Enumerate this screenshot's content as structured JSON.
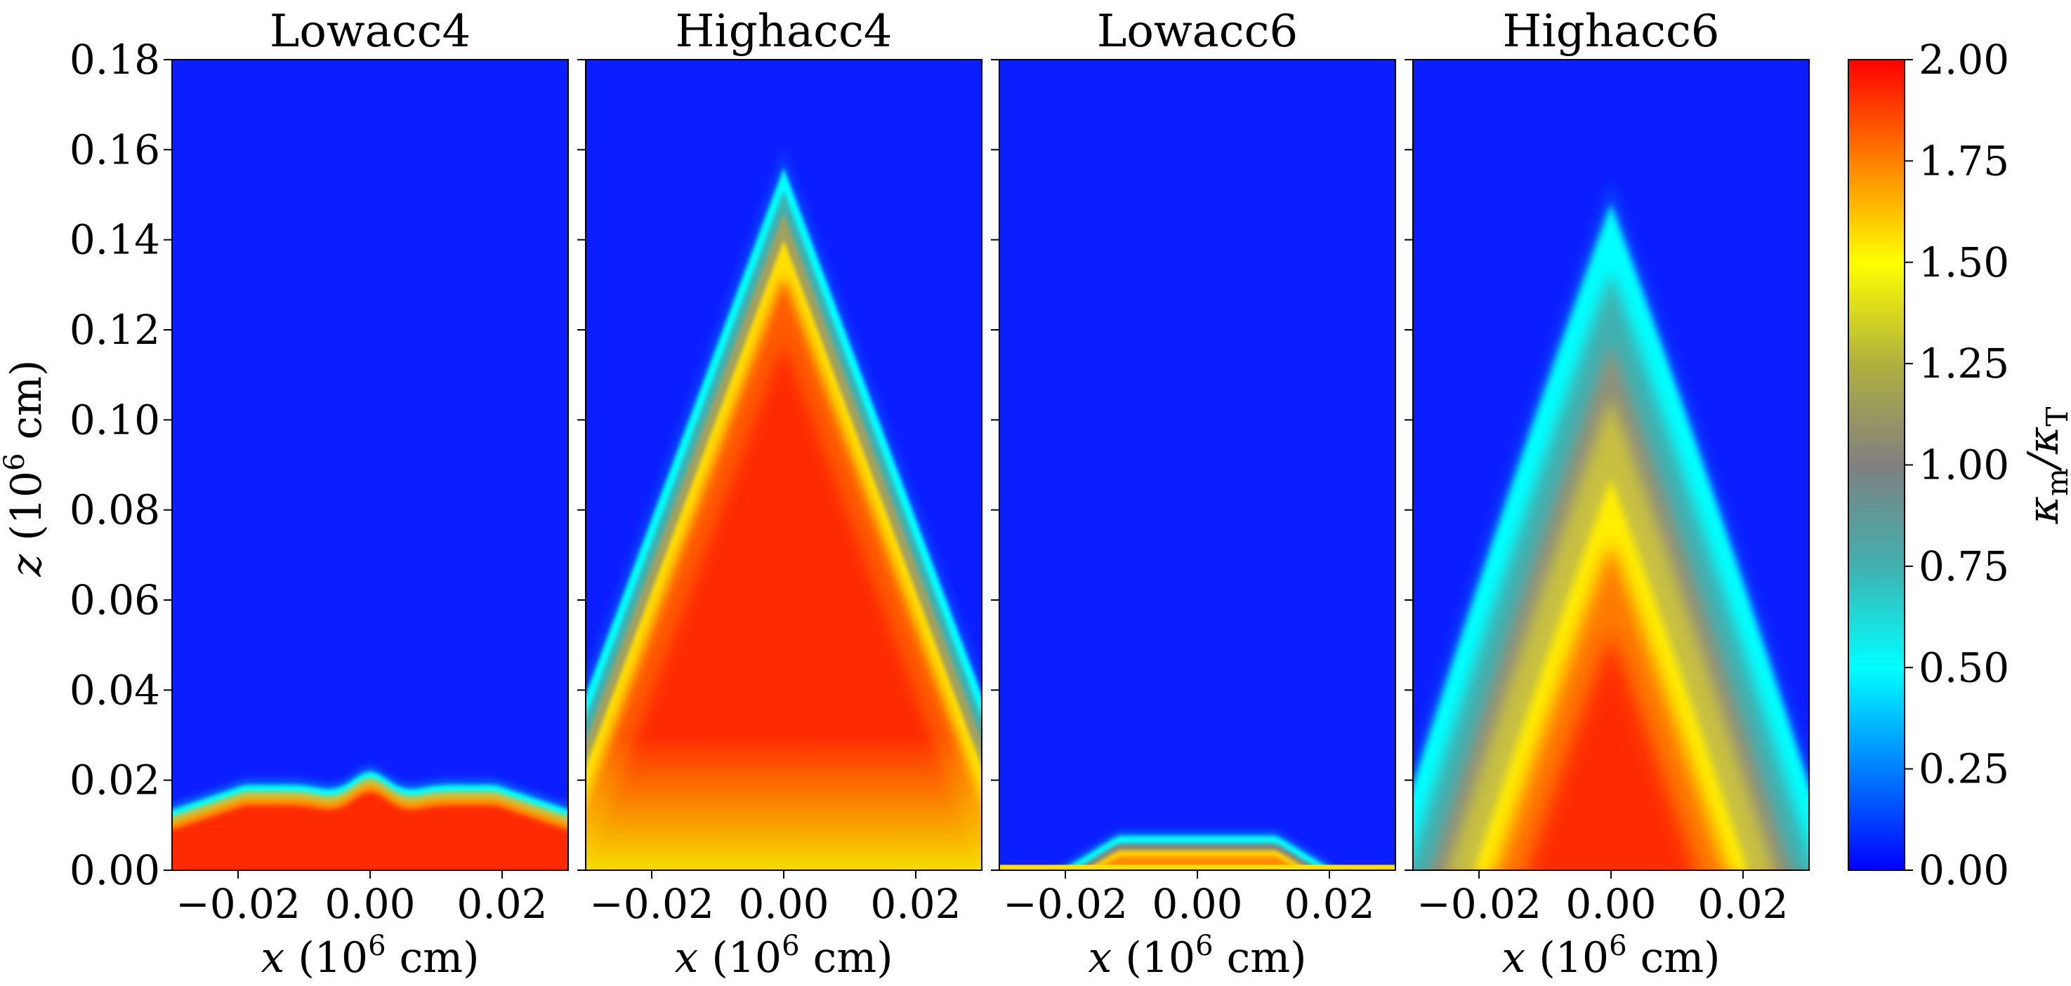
{
  "chart_data": {
    "type": "heatmap",
    "panels": [
      {
        "title": "Lowacc4",
        "profile": "low4"
      },
      {
        "title": "Highacc4",
        "profile": "high4"
      },
      {
        "title": "Lowacc6",
        "profile": "low6"
      },
      {
        "title": "Highacc6",
        "profile": "high6"
      }
    ],
    "xlabel": {
      "base": "x",
      "units": " (10",
      "exp": "6",
      "close": " cm)"
    },
    "ylabel": {
      "base": "z",
      "units": " (10",
      "exp": "6",
      "close": " cm)"
    },
    "xlim": [
      -0.03,
      0.03
    ],
    "ylim": [
      0.0,
      0.18
    ],
    "xticks": [
      -0.02,
      0.0,
      0.02
    ],
    "xtick_labels": [
      "−0.02",
      "0.00",
      "0.02"
    ],
    "yticks": [
      0.0,
      0.02,
      0.04,
      0.06,
      0.08,
      0.1,
      0.12,
      0.14,
      0.16,
      0.18
    ],
    "ytick_labels": [
      "0.00",
      "0.02",
      "0.04",
      "0.06",
      "0.08",
      "0.10",
      "0.12",
      "0.14",
      "0.16",
      "0.18"
    ],
    "colorbar": {
      "label_main": "κ",
      "label_sub1": "m",
      "label_slash": "/κ",
      "label_sub2": "T",
      "range": [
        0.0,
        2.0
      ],
      "ticks": [
        0.0,
        0.25,
        0.5,
        0.75,
        1.0,
        1.25,
        1.5,
        1.75,
        2.0
      ],
      "tick_labels": [
        "0.00",
        "0.25",
        "0.50",
        "0.75",
        "1.00",
        "1.25",
        "1.50",
        "1.75",
        "2.00"
      ],
      "colormap": [
        {
          "v": 0.0,
          "color": "#0000ff"
        },
        {
          "v": 0.25,
          "color": "#0080ff"
        },
        {
          "v": 0.5,
          "color": "#00ffff"
        },
        {
          "v": 0.75,
          "color": "#40b0b0"
        },
        {
          "v": 1.0,
          "color": "#808080"
        },
        {
          "v": 1.25,
          "color": "#b0b040"
        },
        {
          "v": 1.5,
          "color": "#ffff00"
        },
        {
          "v": 1.75,
          "color": "#ff8000"
        },
        {
          "v": 2.0,
          "color": "#ff0000"
        }
      ]
    },
    "background_color": "#0a1eff"
  }
}
